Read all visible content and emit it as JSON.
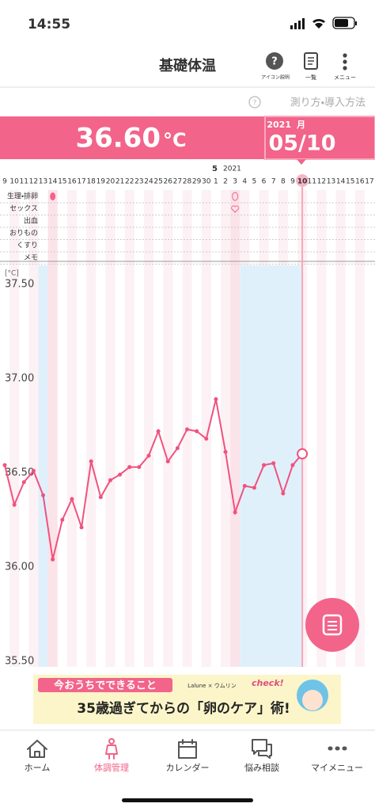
{
  "status_bar": {
    "time": "14:55"
  },
  "header": {
    "title": "基礎体温",
    "icons": [
      "アイコン説明",
      "一覧",
      "メニュー"
    ],
    "help_link": "測り方・導入方法"
  },
  "summary": {
    "temperature": "36.60",
    "unit": "°C",
    "year": "2021",
    "month_label": "月",
    "date": "05/10"
  },
  "date_strip": {
    "month": "5",
    "year": "2021"
  },
  "rows": [
    "生理・排卵",
    "セックス",
    "出血",
    "おりもの",
    "くすり",
    "メモ"
  ],
  "chart_data": {
    "type": "line",
    "y_label": "[°C]",
    "categories": [
      "9",
      "10",
      "11",
      "12",
      "13",
      "14",
      "15",
      "16",
      "17",
      "18",
      "19",
      "20",
      "21",
      "22",
      "23",
      "24",
      "25",
      "26",
      "27",
      "28",
      "29",
      "30",
      "1",
      "2",
      "3",
      "4",
      "5",
      "6",
      "7",
      "8",
      "9",
      "10",
      "11",
      "12",
      "13",
      "14",
      "15",
      "16",
      "17"
    ],
    "series": [
      {
        "color": "#f0527e",
        "values": [
          36.54,
          36.33,
          36.45,
          36.51,
          36.38,
          36.04,
          36.25,
          36.36,
          36.21,
          36.56,
          36.37,
          36.46,
          36.49,
          36.53,
          36.53,
          36.59,
          36.72,
          36.56,
          36.63,
          36.73,
          36.72,
          36.68,
          36.89,
          36.61,
          36.29,
          36.43,
          36.42,
          36.54,
          36.55,
          36.39,
          36.54,
          36.6,
          null,
          null,
          null,
          null,
          null,
          null,
          null
        ]
      }
    ],
    "ylim": [
      35.47,
      37.6
    ],
    "yticks": [
      {
        "value": 37.5,
        "label": "37.50"
      },
      {
        "value": 37.0,
        "label": "37.00"
      },
      {
        "value": 36.5,
        "label": "36.50"
      },
      {
        "value": 36.0,
        "label": "36.00"
      },
      {
        "value": 35.5,
        "label": "35.50"
      }
    ],
    "grid": false
  },
  "ad": {
    "headline": "今おうちでできること",
    "brand": "Lalune × ウムリン",
    "tag": "check!",
    "text": "35歳過ぎてからの「卵のケア」術!"
  },
  "nav": [
    "ホーム",
    "体調管理",
    "カレンダー",
    "悩み相談",
    "マイメニュー"
  ]
}
